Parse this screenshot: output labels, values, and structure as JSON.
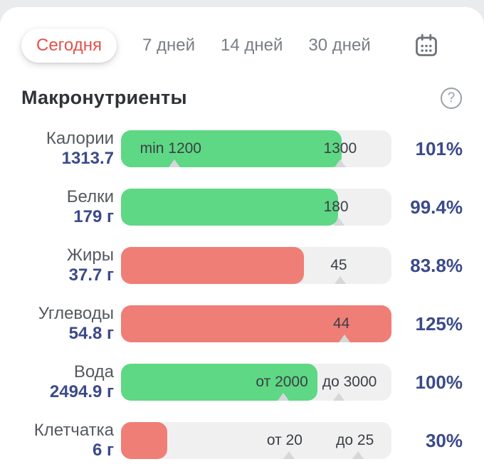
{
  "colors": {
    "page_bg": "#e9ebed",
    "card_bg": "#ffffff",
    "accent_red": "#e2514c",
    "tab_inactive": "#797e85",
    "title": "#2f3338",
    "icon_gray": "#6e747b",
    "label_gray": "#55595f",
    "value_navy": "#3b4a8a",
    "track": "#f0f0f1",
    "green": "#5ed884",
    "red": "#ef7e77",
    "bar_label": "#3b3f45",
    "caret": "#d5d7d8"
  },
  "tabs": {
    "items": [
      {
        "label": "Сегодня",
        "selected": true
      },
      {
        "label": "7 дней",
        "selected": false
      },
      {
        "label": "14 дней",
        "selected": false
      },
      {
        "label": "30 дней",
        "selected": false
      }
    ]
  },
  "section": {
    "title": "Макронутриенты",
    "help_glyph": "?"
  },
  "chart_data": {
    "type": "bar",
    "title": "Макронутриенты",
    "period": "Сегодня",
    "rows": [
      {
        "name": "Калории",
        "value": "1313.7",
        "percent": "101%",
        "color": "green",
        "fill_pct": 81.5,
        "bar_labels": [
          {
            "text": "min 1200",
            "align": "left",
            "pos_pct": 7
          },
          {
            "text": "1300",
            "align": "center",
            "pos_pct": 81
          }
        ],
        "marker_pcts": [
          19.7,
          81
        ]
      },
      {
        "name": "Белки",
        "value": "179 г",
        "percent": "99.4%",
        "color": "green",
        "fill_pct": 80.3,
        "bar_labels": [
          {
            "text": "180",
            "align": "center",
            "pos_pct": 79.5
          }
        ],
        "marker_pcts": [
          80.5
        ]
      },
      {
        "name": "Жиры",
        "value": "37.7 г",
        "percent": "83.8%",
        "color": "red",
        "fill_pct": 67.5,
        "bar_labels": [
          {
            "text": "45",
            "align": "center",
            "pos_pct": 80.5
          }
        ],
        "marker_pcts": [
          81
        ]
      },
      {
        "name": "Углеводы",
        "value": "54.8 г",
        "percent": "125%",
        "color": "red",
        "fill_pct": 100,
        "bar_labels": [
          {
            "text": "44",
            "align": "center",
            "pos_pct": 81.5
          }
        ],
        "marker_pcts": [
          82.5
        ]
      },
      {
        "name": "Вода",
        "value": "2494.9 г",
        "percent": "100%",
        "color": "green",
        "fill_pct": 72.5,
        "bar_labels": [
          {
            "text": "от 2000",
            "align": "center",
            "pos_pct": 59.5
          },
          {
            "text": "до 3000",
            "align": "center",
            "pos_pct": 84.5
          }
        ],
        "marker_pcts": [
          60,
          80.5
        ]
      },
      {
        "name": "Клетчатка",
        "value": "6 г",
        "percent": "30%",
        "color": "red",
        "fill_pct": 17,
        "bar_labels": [
          {
            "text": "от 20",
            "align": "center",
            "pos_pct": 60.5
          },
          {
            "text": "до 25",
            "align": "center",
            "pos_pct": 86.5
          }
        ],
        "marker_pcts": [
          62,
          87.5
        ]
      }
    ]
  }
}
